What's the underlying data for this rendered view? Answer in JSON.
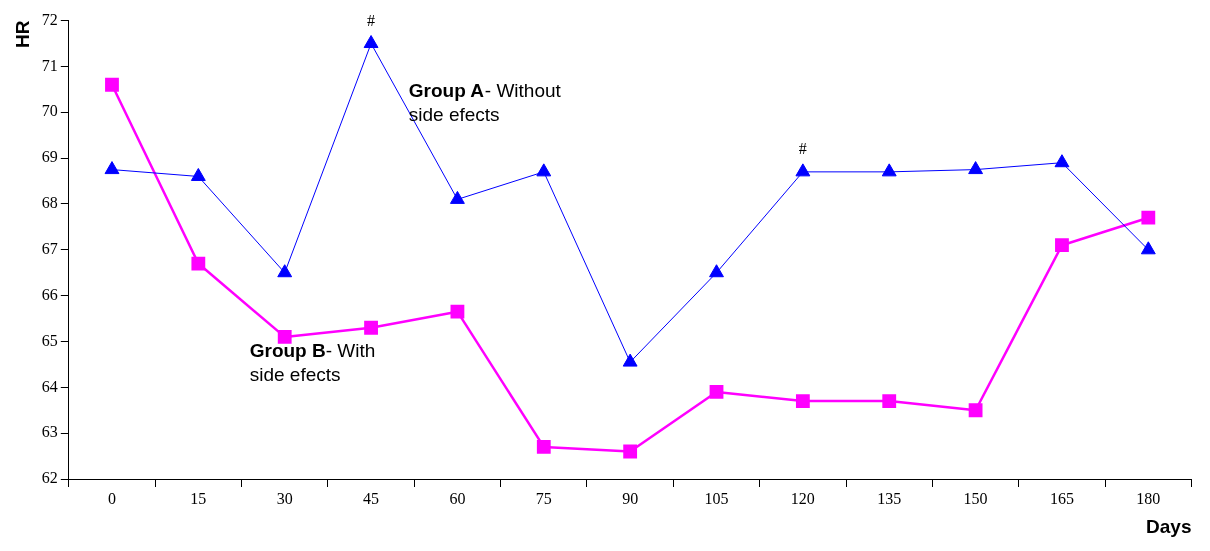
{
  "chart_data": {
    "type": "line",
    "xlabel": "Days",
    "ylabel": "HR",
    "categories": [
      "0",
      "15",
      "30",
      "45",
      "60",
      "75",
      "90",
      "105",
      "120",
      "135",
      "150",
      "165",
      "180"
    ],
    "series": [
      {
        "name": "Group A- Without side efects",
        "color": "#0000ff",
        "marker": "triangle",
        "values": [
          68.75,
          68.6,
          66.5,
          71.5,
          68.1,
          68.7,
          64.55,
          66.5,
          68.7,
          68.7,
          68.75,
          68.9,
          67.0
        ]
      },
      {
        "name": "Group B- With side efects",
        "color": "#ff00ff",
        "marker": "square",
        "values": [
          70.6,
          66.7,
          65.1,
          65.3,
          65.65,
          62.7,
          62.6,
          63.9,
          63.7,
          63.7,
          63.5,
          67.1,
          67.7
        ]
      }
    ],
    "ylim": [
      62,
      72
    ],
    "yticks": [
      62,
      63,
      64,
      65,
      66,
      67,
      68,
      69,
      70,
      71,
      72
    ],
    "grid": false,
    "legend": false,
    "annotations": [
      {
        "text": "#",
        "x": "45",
        "y": 71.5
      },
      {
        "text": "#",
        "x": "120",
        "y": 68.7
      }
    ]
  }
}
